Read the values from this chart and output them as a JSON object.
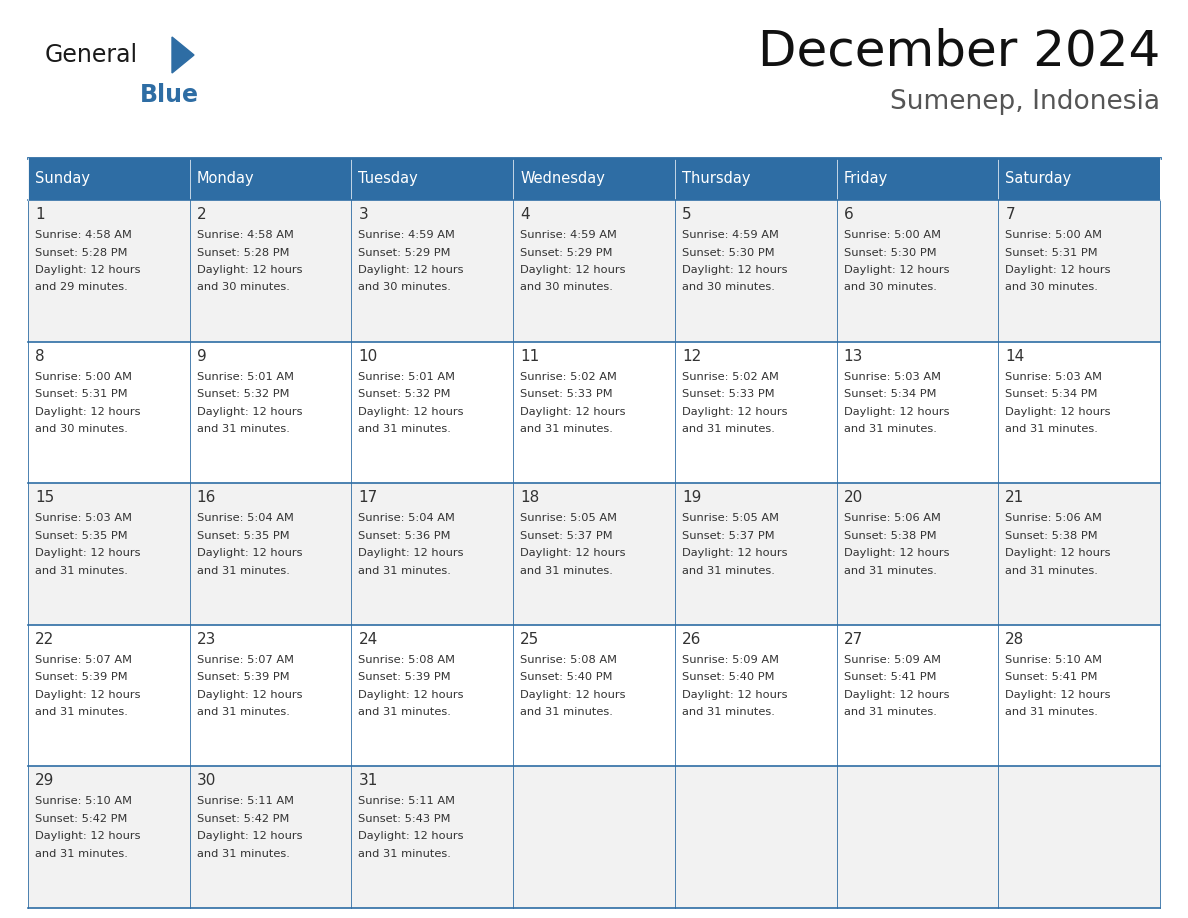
{
  "title": "December 2024",
  "subtitle": "Sumenep, Indonesia",
  "days_of_week": [
    "Sunday",
    "Monday",
    "Tuesday",
    "Wednesday",
    "Thursday",
    "Friday",
    "Saturday"
  ],
  "header_bg_color": "#2E6DA4",
  "header_text_color": "#FFFFFF",
  "row_bg_colors": [
    "#F2F2F2",
    "#FFFFFF",
    "#F2F2F2",
    "#FFFFFF",
    "#F2F2F2"
  ],
  "cell_border_color": "#2E6DA4",
  "text_color": "#333333",
  "title_color": "#111111",
  "subtitle_color": "#555555",
  "logo_general_color": "#1a1a1a",
  "logo_blue_color": "#2E6DA4",
  "calendar_data": [
    [
      {
        "day": 1,
        "sunrise": "4:58 AM",
        "sunset": "5:28 PM",
        "daylight_extra": "29 minutes."
      },
      {
        "day": 2,
        "sunrise": "4:58 AM",
        "sunset": "5:28 PM",
        "daylight_extra": "30 minutes."
      },
      {
        "day": 3,
        "sunrise": "4:59 AM",
        "sunset": "5:29 PM",
        "daylight_extra": "30 minutes."
      },
      {
        "day": 4,
        "sunrise": "4:59 AM",
        "sunset": "5:29 PM",
        "daylight_extra": "30 minutes."
      },
      {
        "day": 5,
        "sunrise": "4:59 AM",
        "sunset": "5:30 PM",
        "daylight_extra": "30 minutes."
      },
      {
        "day": 6,
        "sunrise": "5:00 AM",
        "sunset": "5:30 PM",
        "daylight_extra": "30 minutes."
      },
      {
        "day": 7,
        "sunrise": "5:00 AM",
        "sunset": "5:31 PM",
        "daylight_extra": "30 minutes."
      }
    ],
    [
      {
        "day": 8,
        "sunrise": "5:00 AM",
        "sunset": "5:31 PM",
        "daylight_extra": "30 minutes."
      },
      {
        "day": 9,
        "sunrise": "5:01 AM",
        "sunset": "5:32 PM",
        "daylight_extra": "31 minutes."
      },
      {
        "day": 10,
        "sunrise": "5:01 AM",
        "sunset": "5:32 PM",
        "daylight_extra": "31 minutes."
      },
      {
        "day": 11,
        "sunrise": "5:02 AM",
        "sunset": "5:33 PM",
        "daylight_extra": "31 minutes."
      },
      {
        "day": 12,
        "sunrise": "5:02 AM",
        "sunset": "5:33 PM",
        "daylight_extra": "31 minutes."
      },
      {
        "day": 13,
        "sunrise": "5:03 AM",
        "sunset": "5:34 PM",
        "daylight_extra": "31 minutes."
      },
      {
        "day": 14,
        "sunrise": "5:03 AM",
        "sunset": "5:34 PM",
        "daylight_extra": "31 minutes."
      }
    ],
    [
      {
        "day": 15,
        "sunrise": "5:03 AM",
        "sunset": "5:35 PM",
        "daylight_extra": "31 minutes."
      },
      {
        "day": 16,
        "sunrise": "5:04 AM",
        "sunset": "5:35 PM",
        "daylight_extra": "31 minutes."
      },
      {
        "day": 17,
        "sunrise": "5:04 AM",
        "sunset": "5:36 PM",
        "daylight_extra": "31 minutes."
      },
      {
        "day": 18,
        "sunrise": "5:05 AM",
        "sunset": "5:37 PM",
        "daylight_extra": "31 minutes."
      },
      {
        "day": 19,
        "sunrise": "5:05 AM",
        "sunset": "5:37 PM",
        "daylight_extra": "31 minutes."
      },
      {
        "day": 20,
        "sunrise": "5:06 AM",
        "sunset": "5:38 PM",
        "daylight_extra": "31 minutes."
      },
      {
        "day": 21,
        "sunrise": "5:06 AM",
        "sunset": "5:38 PM",
        "daylight_extra": "31 minutes."
      }
    ],
    [
      {
        "day": 22,
        "sunrise": "5:07 AM",
        "sunset": "5:39 PM",
        "daylight_extra": "31 minutes."
      },
      {
        "day": 23,
        "sunrise": "5:07 AM",
        "sunset": "5:39 PM",
        "daylight_extra": "31 minutes."
      },
      {
        "day": 24,
        "sunrise": "5:08 AM",
        "sunset": "5:39 PM",
        "daylight_extra": "31 minutes."
      },
      {
        "day": 25,
        "sunrise": "5:08 AM",
        "sunset": "5:40 PM",
        "daylight_extra": "31 minutes."
      },
      {
        "day": 26,
        "sunrise": "5:09 AM",
        "sunset": "5:40 PM",
        "daylight_extra": "31 minutes."
      },
      {
        "day": 27,
        "sunrise": "5:09 AM",
        "sunset": "5:41 PM",
        "daylight_extra": "31 minutes."
      },
      {
        "day": 28,
        "sunrise": "5:10 AM",
        "sunset": "5:41 PM",
        "daylight_extra": "31 minutes."
      }
    ],
    [
      {
        "day": 29,
        "sunrise": "5:10 AM",
        "sunset": "5:42 PM",
        "daylight_extra": "31 minutes."
      },
      {
        "day": 30,
        "sunrise": "5:11 AM",
        "sunset": "5:42 PM",
        "daylight_extra": "31 minutes."
      },
      {
        "day": 31,
        "sunrise": "5:11 AM",
        "sunset": "5:43 PM",
        "daylight_extra": "31 minutes."
      },
      null,
      null,
      null,
      null
    ]
  ]
}
